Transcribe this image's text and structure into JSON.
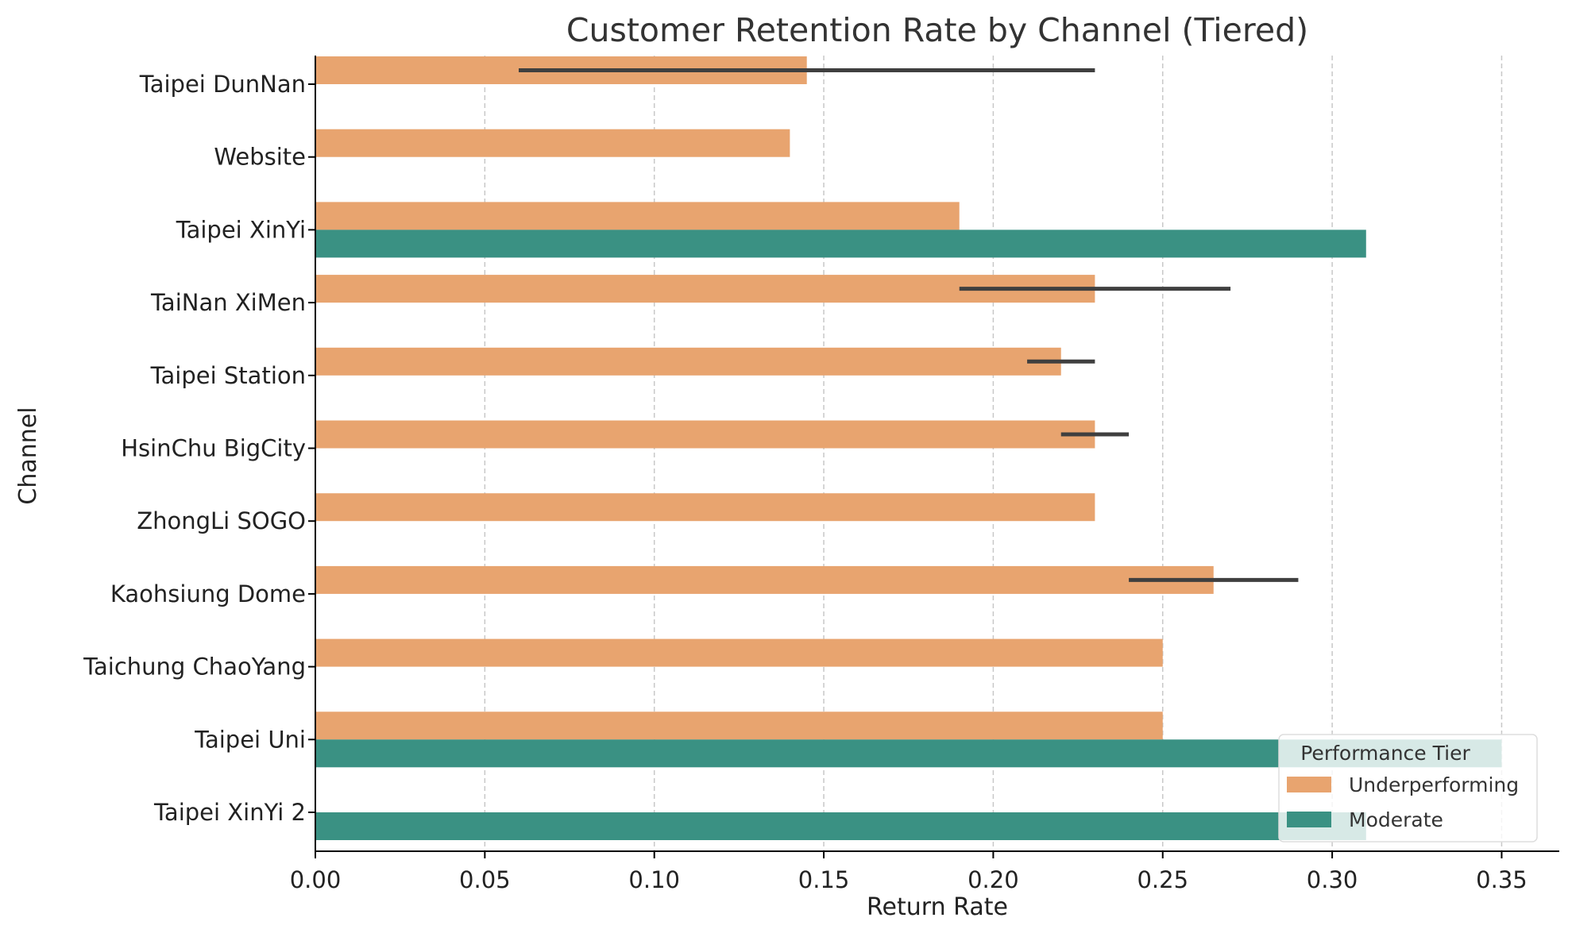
{
  "chart_data": {
    "type": "bar",
    "orientation": "horizontal",
    "title": "Customer Retention Rate by Channel (Tiered)",
    "xlabel": "Return Rate",
    "ylabel": "Channel",
    "xlim": [
      0,
      0.367
    ],
    "xticks": [
      "0.00",
      "0.05",
      "0.10",
      "0.15",
      "0.20",
      "0.25",
      "0.30",
      "0.35"
    ],
    "grid": "vertical dashed",
    "categories": [
      "Taipei DunNan",
      "Website",
      "Taipei XinYi",
      "TaiNan XiMen",
      "Taipei Station",
      "HsinChu BigCity",
      "ZhongLi SOGO",
      "Kaohsiung Dome",
      "Taichung ChaoYang",
      "Taipei Uni",
      "Taipei XinYi 2"
    ],
    "series": [
      {
        "name": "Underperforming",
        "color": "#e8a46f",
        "values": [
          0.145,
          0.14,
          0.19,
          0.23,
          0.22,
          0.23,
          0.23,
          0.265,
          0.25,
          0.25,
          null
        ],
        "error_ranges": [
          [
            0.06,
            0.23
          ],
          null,
          null,
          [
            0.19,
            0.27
          ],
          [
            0.21,
            0.23
          ],
          [
            0.22,
            0.24
          ],
          null,
          [
            0.24,
            0.29
          ],
          null,
          null,
          null
        ]
      },
      {
        "name": "Moderate",
        "color": "#3a9183",
        "values": [
          null,
          null,
          0.31,
          null,
          null,
          null,
          null,
          null,
          null,
          0.35,
          0.31
        ],
        "error_ranges": [
          null,
          null,
          null,
          null,
          null,
          null,
          null,
          null,
          null,
          null,
          null
        ]
      }
    ],
    "legend": {
      "title": "Performance Tier",
      "placement": "lower-right"
    }
  }
}
